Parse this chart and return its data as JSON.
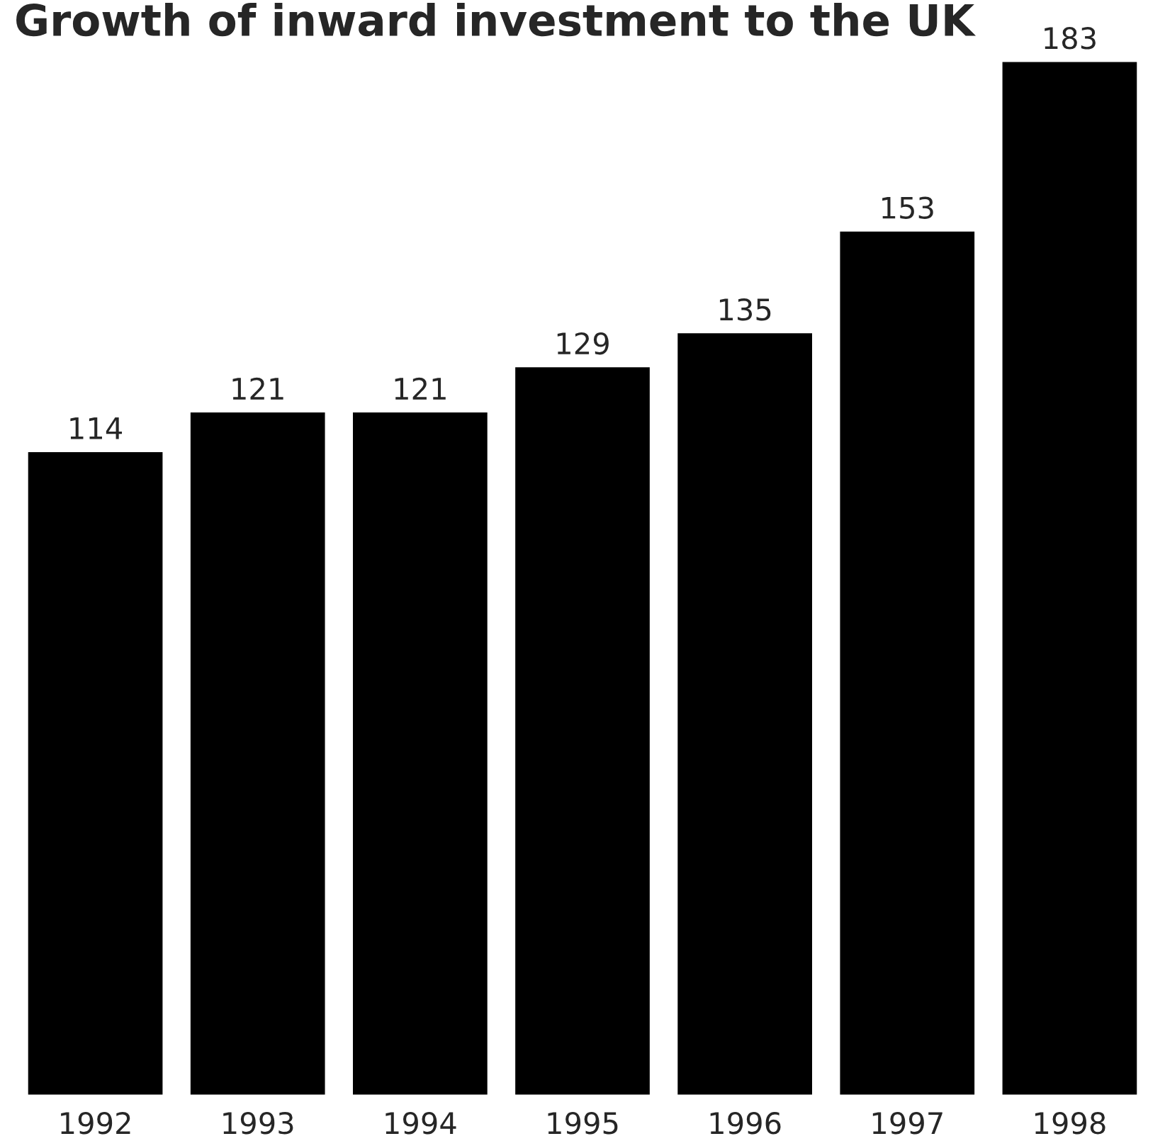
{
  "chart_data": {
    "type": "bar",
    "title": "Growth of inward investment to the UK",
    "categories": [
      "1992",
      "1993",
      "1994",
      "1995",
      "1996",
      "1997",
      "1998"
    ],
    "values": [
      114,
      121,
      121,
      129,
      135,
      153,
      183
    ],
    "color": "#000000",
    "data_labels": true,
    "grid": false,
    "legend": false
  }
}
